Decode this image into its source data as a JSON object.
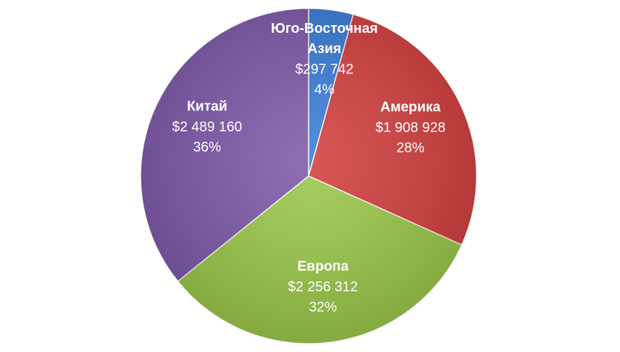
{
  "chart_data": {
    "type": "pie",
    "categories": [
      "Юго-Восточная Азия",
      "Америка",
      "Европа",
      "Китай"
    ],
    "values": [
      297742,
      1908928,
      2256312,
      2489160
    ],
    "value_labels": [
      "$297 742",
      "$1 908 928",
      "$2 256 312",
      "$2 489 160"
    ],
    "percents": [
      4,
      28,
      32,
      36
    ],
    "percent_labels": [
      "4%",
      "28%",
      "32%",
      "36%"
    ],
    "colors": [
      "#3b7dd8",
      "#d2403f",
      "#9cc94b",
      "#7e5aaa"
    ]
  }
}
